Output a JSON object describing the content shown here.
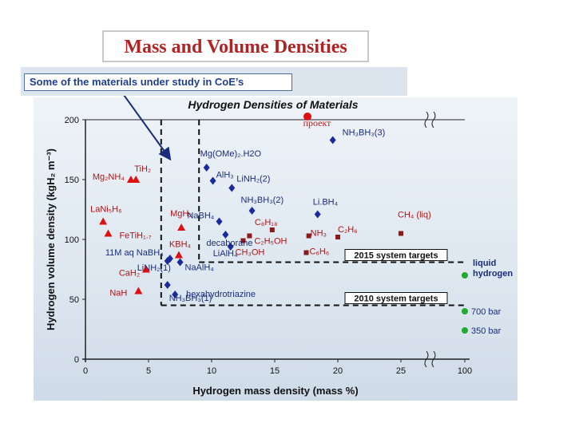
{
  "page": {
    "title": "Mass and Volume Densities"
  },
  "banner": {
    "text": "Some of the materials under study in CoE’s"
  },
  "chart_data": {
    "type": "scatter",
    "title": "Hydrogen Densities of Materials",
    "xlabel": "Hydrogen mass density (mass %)",
    "ylabel": "Hydrogen volume density (kgH₂ m⁻³)",
    "ylim": [
      0,
      200
    ],
    "x_ticks": [
      0,
      5,
      10,
      15,
      20,
      25,
      100
    ],
    "y_ticks": [
      0,
      50,
      100,
      150,
      200
    ],
    "x_break": "between 25 and 100",
    "stamp": "проект",
    "targets": [
      {
        "label": "2015 system targets",
        "x": 9,
        "y": 81
      },
      {
        "label": "2010 system targets",
        "x": 6,
        "y": 45
      }
    ],
    "series": [
      {
        "name": "red-triangles",
        "color": "#dd1111",
        "points": [
          {
            "label": "TiH₂",
            "x": 4.0,
            "y": 150
          },
          {
            "label": "Mg₂NH₄",
            "x": 3.6,
            "y": 150
          },
          {
            "label": "MgH₂",
            "x": 7.6,
            "y": 110
          },
          {
            "label": "LaNi₅H₆",
            "x": 1.4,
            "y": 115
          },
          {
            "label": "FeTiH₁.₇",
            "x": 1.8,
            "y": 105
          },
          {
            "label": "KBH₄",
            "x": 7.4,
            "y": 87
          },
          {
            "label": "CaH₂",
            "x": 4.8,
            "y": 75
          },
          {
            "label": "NaH",
            "x": 4.2,
            "y": 57
          }
        ]
      },
      {
        "name": "blue-diamonds",
        "color": "#1a2c9c",
        "points": [
          {
            "label": "NH₃BH₃(3)",
            "x": 19.6,
            "y": 183
          },
          {
            "label": "Mg(OMe)₂.H2O",
            "x": 9.6,
            "y": 160
          },
          {
            "label": "AlH₃",
            "x": 10.1,
            "y": 149
          },
          {
            "label": "LiNH₂(2)",
            "x": 11.6,
            "y": 143
          },
          {
            "label": "NH₃BH₃(2)",
            "x": 13.2,
            "y": 124
          },
          {
            "label": "NaBH₄",
            "x": 10.6,
            "y": 115
          },
          {
            "label": "Li.BH₄",
            "x": 18.4,
            "y": 121
          },
          {
            "label": "decaborane",
            "x": 11.1,
            "y": 104
          },
          {
            "label": "LiAlH₄",
            "x": 11.5,
            "y": 94
          },
          {
            "label": "11M aq NaBH₄",
            "x": 6.7,
            "y": 84
          },
          {
            "label": "LiNH₂(1)",
            "x": 6.5,
            "y": 82
          },
          {
            "label": "NaAlH₄",
            "x": 7.5,
            "y": 81
          },
          {
            "label": "NH₃BH₃(1)",
            "x": 6.5,
            "y": 62
          },
          {
            "label": "hexahydrotriazine",
            "x": 7.1,
            "y": 54
          }
        ]
      },
      {
        "name": "dark-red-squares",
        "color": "#8b1a1a",
        "points": [
          {
            "label": "C₈H₁₈",
            "x": 14.8,
            "y": 108
          },
          {
            "label": "C₂H₅OH",
            "x": 13.0,
            "y": 103
          },
          {
            "label": "CH₃OH",
            "x": 12.5,
            "y": 99
          },
          {
            "label": "NH₃",
            "x": 17.7,
            "y": 103
          },
          {
            "label": "C₂H₆",
            "x": 20.0,
            "y": 102
          },
          {
            "label": "C₆H₆",
            "x": 17.5,
            "y": 89
          },
          {
            "label": "CH₄ (liq)",
            "x": 25.0,
            "y": 105
          }
        ]
      },
      {
        "name": "green-circles",
        "color": "#22aa33",
        "points": [
          {
            "label": "liquid hydrogen",
            "x": 100,
            "y": 70
          },
          {
            "label": "700 bar",
            "x": 100,
            "y": 40
          },
          {
            "label": "350 bar",
            "x": 100,
            "y": 24
          }
        ]
      }
    ]
  }
}
